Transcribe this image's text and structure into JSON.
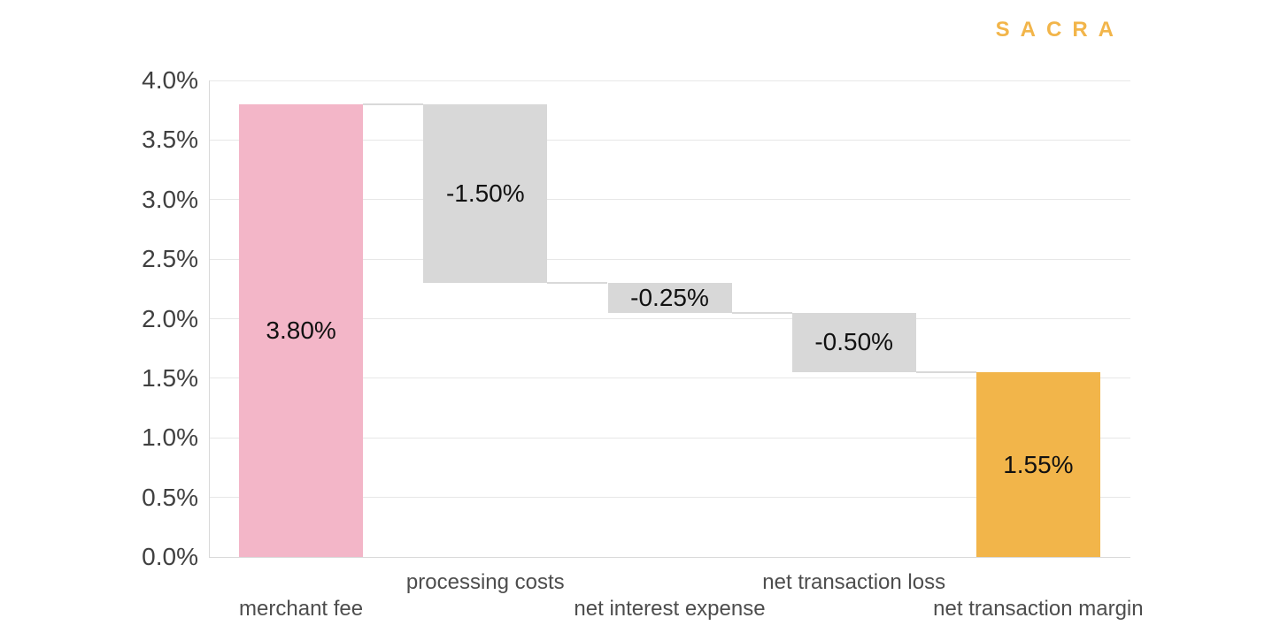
{
  "logo": {
    "text": "SACRA",
    "color": "#F2B54A"
  },
  "chart_data": {
    "type": "bar",
    "subtype": "waterfall",
    "title": "",
    "xlabel": "",
    "ylabel": "",
    "categories": [
      "merchant fee",
      "processing costs",
      "net interest expense",
      "net transaction loss",
      "net transaction margin"
    ],
    "bars": [
      {
        "category": "merchant fee",
        "value": 3.8,
        "label": "3.80%",
        "y_bottom": 0.0,
        "y_top": 3.8,
        "role": "start-total",
        "color_key": "pink",
        "label_row": "lower"
      },
      {
        "category": "processing costs",
        "value": -1.5,
        "label": "-1.50%",
        "y_bottom": 2.3,
        "y_top": 3.8,
        "role": "decrease",
        "color_key": "gray",
        "label_row": "upper"
      },
      {
        "category": "net interest expense",
        "value": -0.25,
        "label": "-0.25%",
        "y_bottom": 2.05,
        "y_top": 2.3,
        "role": "decrease",
        "color_key": "gray",
        "label_row": "lower"
      },
      {
        "category": "net transaction loss",
        "value": -0.5,
        "label": "-0.50%",
        "y_bottom": 1.55,
        "y_top": 2.05,
        "role": "decrease",
        "color_key": "gray",
        "label_row": "upper"
      },
      {
        "category": "net transaction margin",
        "value": 1.55,
        "label": "1.55%",
        "y_bottom": 0.0,
        "y_top": 1.55,
        "role": "end-total",
        "color_key": "orange",
        "label_row": "lower"
      }
    ],
    "connector_levels": [
      3.8,
      2.3,
      2.05,
      1.55
    ],
    "y_axis": {
      "min": 0,
      "max": 4,
      "step": 0.5,
      "tick_labels": [
        "0.0%",
        "0.5%",
        "1.0%",
        "1.5%",
        "2.0%",
        "2.5%",
        "3.0%",
        "3.5%",
        "4.0%"
      ],
      "format": "percent"
    },
    "grid": true,
    "legend": "none",
    "colors": {
      "pink": "#F3B6C8",
      "gray": "#D8D8D8",
      "orange": "#F2B54A",
      "gridline": "#E7E7E7",
      "baseline": "#D9D9D9",
      "axis_line": "#D9D9D9",
      "connector": "#D9D9D9",
      "y_tick_text": "#404040",
      "x_label_text": "#4D4D4D",
      "bar_label_text": "#111111"
    }
  }
}
